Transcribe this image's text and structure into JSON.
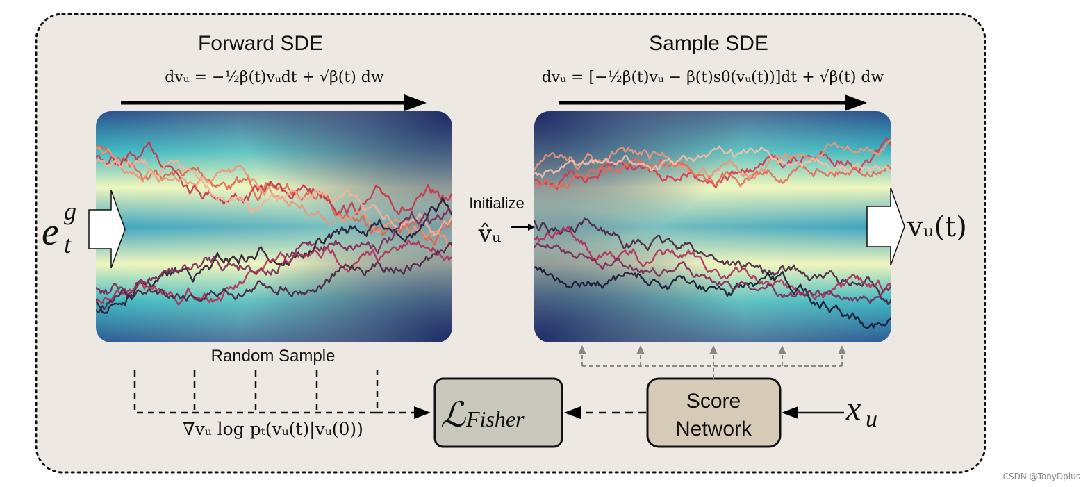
{
  "panels": {
    "forward": {
      "title": "Forward SDE",
      "equation": "dvᵤ = −½β(t)vᵤdt + √β(t) dw"
    },
    "sample": {
      "title": "Sample SDE",
      "equation": "dvᵤ = [−½β(t)vᵤ − β(t)sθ(vᵤ(t))]dt + √β(t) dw"
    }
  },
  "labels": {
    "input": "eₜᵍ",
    "input_base": "e",
    "input_sup": "g",
    "input_sub": "t",
    "initialize": "Initialize",
    "v_hat": "v̂ᵤ",
    "output": "vᵤ(t)",
    "random_sample": "Random Sample",
    "gradient": "∇vᵤ log pₜ(vᵤ(t)|vᵤ(0))",
    "loss": "ℒFisher",
    "loss_script": "ℒ",
    "loss_sub": "Fisher",
    "score_line1": "Score",
    "score_line2": "Network",
    "x_u": "xᵤ",
    "x_base": "x",
    "x_sub": "u",
    "watermark": "CSDN @TonyDplus"
  },
  "colors": {
    "background_panel": "#ede8e1",
    "loss_box": "#c9c8bc",
    "score_box": "#d6cbb6",
    "heat_center": "#f4f7bf",
    "heat_mid": "#37b3c3",
    "heat_edge": "#1a2e6a"
  }
}
